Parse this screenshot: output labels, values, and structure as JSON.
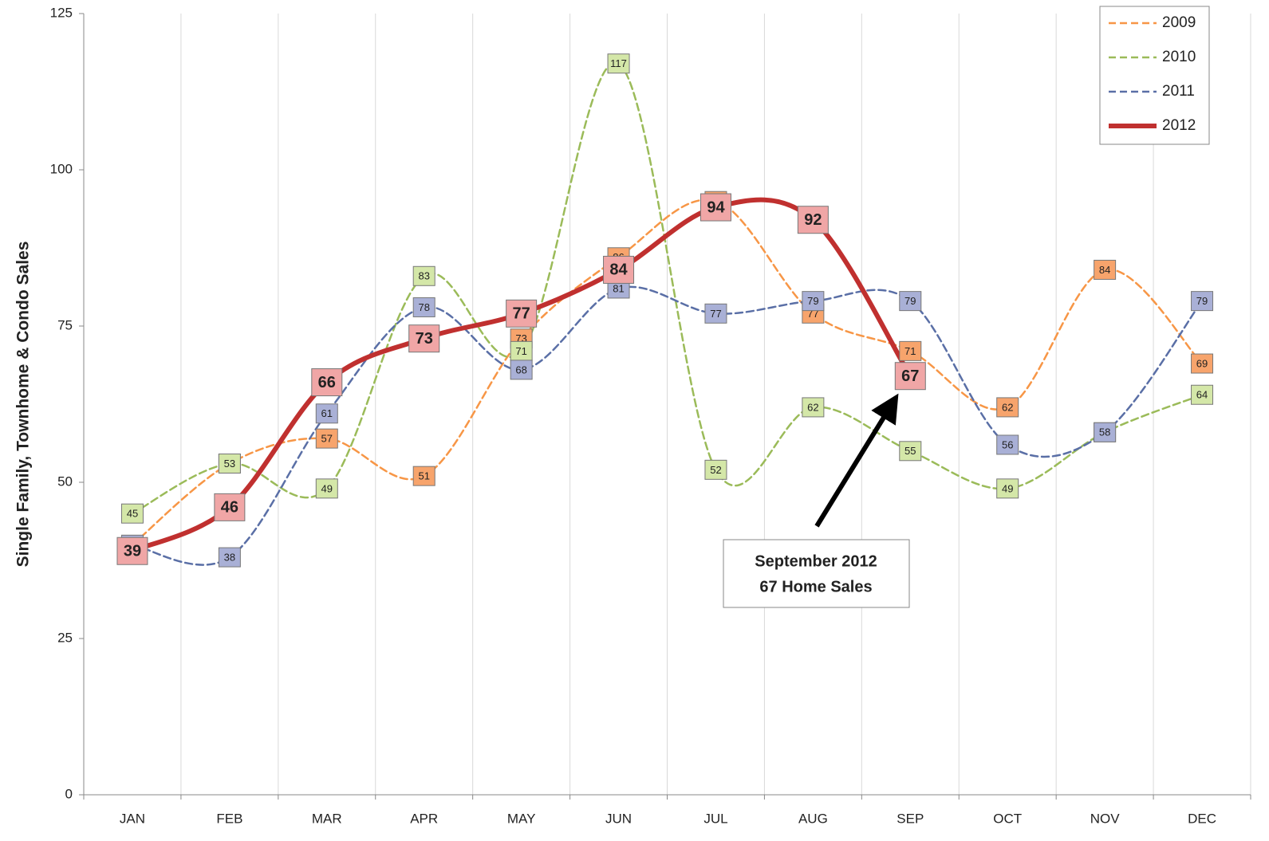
{
  "chart_data": {
    "type": "line",
    "ylabel": "Single Family, Townhome & Condo Sales",
    "categories": [
      "JAN",
      "FEB",
      "MAR",
      "APR",
      "MAY",
      "JUN",
      "JUL",
      "AUG",
      "SEP",
      "OCT",
      "NOV",
      "DEC"
    ],
    "series": [
      {
        "name": "2009",
        "color": "#f79646",
        "label_fill": "#f7a46c",
        "style": "dashed",
        "values": [
          40,
          53,
          57,
          51,
          73,
          86,
          95,
          77,
          71,
          62,
          84,
          69
        ]
      },
      {
        "name": "2010",
        "color": "#9bbb59",
        "label_fill": "#d4e7a8",
        "style": "dashed",
        "values": [
          45,
          53,
          49,
          83,
          71,
          117,
          52,
          62,
          55,
          49,
          58,
          64
        ]
      },
      {
        "name": "2011",
        "color": "#5a6fa6",
        "label_fill": "#a9b0d6",
        "style": "dashed",
        "values": [
          40,
          38,
          61,
          78,
          68,
          81,
          77,
          79,
          79,
          56,
          58,
          79
        ]
      },
      {
        "name": "2012",
        "color": "#c0302f",
        "label_fill": "#f0a6a6",
        "style": "solid",
        "values": [
          39,
          46,
          66,
          73,
          77,
          84,
          94,
          92,
          67,
          null,
          null,
          null
        ]
      }
    ],
    "ylim": [
      0,
      125
    ],
    "yticks": [
      0,
      25,
      50,
      75,
      100,
      125
    ],
    "legend": "upper right",
    "annotation": [
      "September 2012",
      "67 Home Sales"
    ]
  }
}
